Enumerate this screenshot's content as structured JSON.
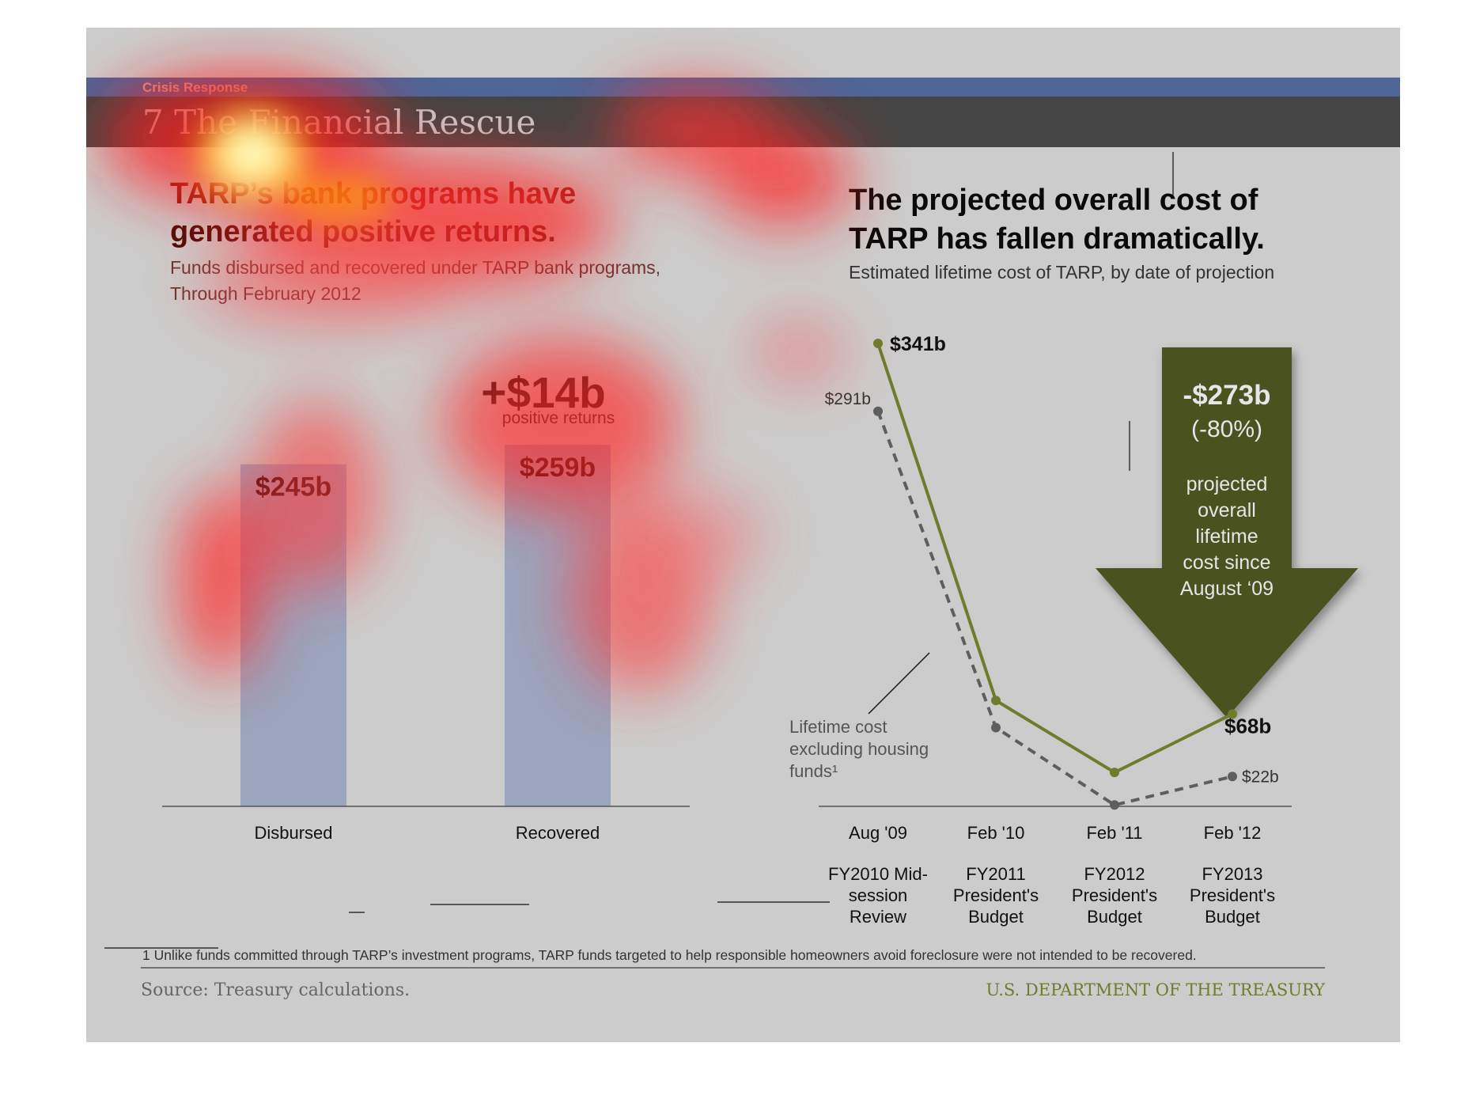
{
  "header": {
    "section": "Crisis Response",
    "title": "7 The Financial Rescue"
  },
  "left": {
    "headline_line1": "TARP’s bank programs have",
    "headline_line2": "generated positive returns.",
    "subtitle_line1": "Funds disbursed and recovered under TARP bank programs,",
    "subtitle_line2": "Through February 2012",
    "delta": "+$14b",
    "delta_caption": "positive returns"
  },
  "right": {
    "headline_line1": "The projected overall cost of",
    "headline_line2": "TARP has fallen dramatically.",
    "subtitle": "Estimated lifetime cost of TARP, by date of projection",
    "arrow_value": "-$273b",
    "arrow_pct": "(-80%)",
    "arrow_text": [
      "projected",
      "overall",
      "lifetime",
      "cost since",
      "August ‘09"
    ],
    "note": [
      "Lifetime cost",
      "excluding housing",
      "funds¹"
    ]
  },
  "chart_data": [
    {
      "type": "bar",
      "categories": [
        "Disbursed",
        "Recovered"
      ],
      "values": [
        245,
        259
      ],
      "value_labels": [
        "$245b",
        "$259b"
      ],
      "ylim": [
        0,
        259
      ]
    },
    {
      "type": "line",
      "x": [
        "Aug '09",
        "Feb '10",
        "Feb '11",
        "Feb '12"
      ],
      "x_sublabels": [
        [
          "FY2010 Mid-",
          "session",
          "Review"
        ],
        [
          "FY2011",
          "President's",
          "Budget"
        ],
        [
          "FY2012",
          "President's",
          "Budget"
        ],
        [
          "FY2013",
          "President's",
          "Budget"
        ]
      ],
      "series": [
        {
          "values": [
            341,
            78,
            25,
            68
          ],
          "labels": [
            "$341b",
            "",
            "",
            "$68b"
          ],
          "color": "#6e7d2c",
          "style": "solid"
        },
        {
          "name": "Lifetime cost excluding housing funds¹",
          "values": [
            291,
            58,
            1,
            22
          ],
          "labels": [
            "$291b",
            "",
            "",
            "$22b"
          ],
          "color": "#5e5e5e",
          "style": "dashed"
        }
      ],
      "ylim": [
        0,
        341
      ]
    }
  ],
  "footer": {
    "footnote": "1 Unlike funds committed through TARP’s investment programs, TARP funds targeted to help responsible homeowners avoid foreclosure were not intended to be recovered.",
    "source": "Source: Treasury calculations.",
    "agency": "U.S. DEPARTMENT OF THE TREASURY"
  },
  "colors": {
    "bar": "#9ba5bd",
    "arrow": "#4a5220",
    "green_line": "#6e7d2c",
    "gray_line": "#5e5e5e"
  }
}
